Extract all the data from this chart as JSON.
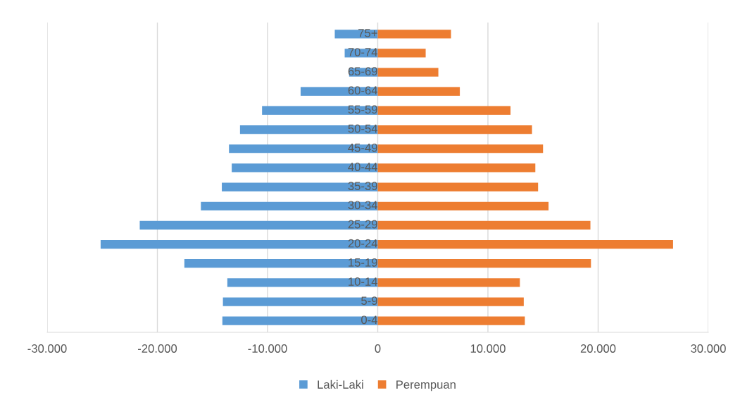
{
  "chart_data": {
    "type": "bar",
    "orientation": "horizontal",
    "categories": [
      "75+",
      "70-74",
      "65-69",
      "60-64",
      "55-59",
      "50-54",
      "45-49",
      "40-44",
      "35-39",
      "30-34",
      "25-29",
      "20-24",
      "15-19",
      "10-14",
      "5-9",
      "0-4"
    ],
    "series": [
      {
        "name": "Laki-Laki",
        "color": "#5b9bd5",
        "values": [
          -3900,
          -3000,
          -2600,
          -7000,
          -10500,
          -12500,
          -13500,
          -13250,
          -14150,
          -16050,
          -21600,
          -25150,
          -17550,
          -13650,
          -14050,
          -14100
        ]
      },
      {
        "name": "Perempuan",
        "color": "#ed7d31",
        "values": [
          6650,
          4350,
          5500,
          7450,
          12050,
          14000,
          15000,
          14300,
          14550,
          15500,
          19300,
          26800,
          19350,
          12900,
          13250,
          13350
        ]
      }
    ],
    "xlim": [
      -30000,
      30000
    ],
    "xticks": [
      {
        "value": -30000,
        "label": "-30.000"
      },
      {
        "value": -20000,
        "label": "-20.000"
      },
      {
        "value": -10000,
        "label": "-10.000"
      },
      0,
      {
        "value": 10000,
        "label": "10.000"
      },
      {
        "value": 20000,
        "label": "20.000"
      },
      {
        "value": 30000,
        "label": "30.000"
      }
    ],
    "grid": "x",
    "legend": "bottom",
    "stacked": true
  }
}
